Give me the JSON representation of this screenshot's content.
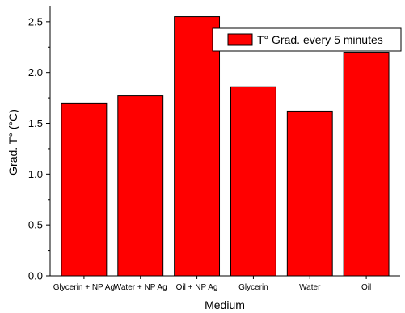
{
  "chart_data": {
    "type": "bar",
    "categories": [
      "Glycerin + NP Ag",
      "Water + NP Ag",
      "Oil + NP Ag",
      "Glycerin",
      "Water",
      "Oil"
    ],
    "series": [
      {
        "name": "T° Grad. every 5 minutes",
        "values": [
          1.7,
          1.77,
          2.55,
          1.86,
          1.62,
          2.2
        ]
      }
    ],
    "xlabel": "Medium",
    "ylabel": "Grad. T° (°C)",
    "ylim": [
      0.0,
      2.65
    ],
    "yticks": [
      "0.0",
      "0.5",
      "1.0",
      "1.5",
      "2.0",
      "2.5"
    ],
    "grid": false,
    "legend_position": "top-right",
    "bar_color": "#ff0000",
    "bar_edge_color": "#000000"
  }
}
